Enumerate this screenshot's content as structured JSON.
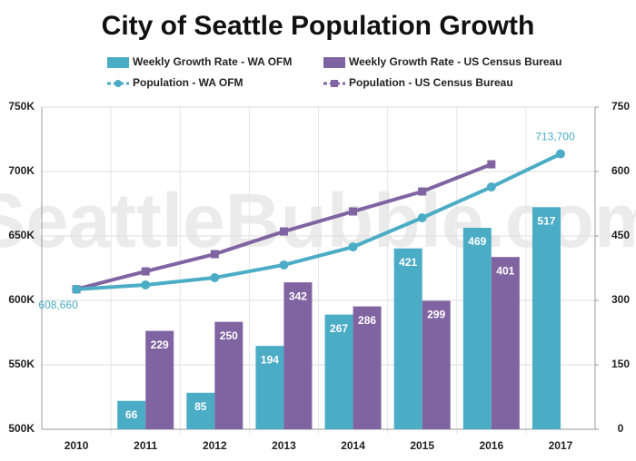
{
  "chart_data": {
    "type": "bar",
    "title": "City of Seattle Population Growth",
    "watermark": "SeattleBubble.com",
    "categories": [
      "2010",
      "2011",
      "2012",
      "2013",
      "2014",
      "2015",
      "2016",
      "2017"
    ],
    "series": [
      {
        "name": "Weekly Growth Rate - WA OFM",
        "type": "bar",
        "axis": "y2",
        "color": "#4bacc6",
        "values": [
          null,
          66,
          85,
          194,
          267,
          421,
          469,
          517
        ]
      },
      {
        "name": "Weekly Growth Rate - US Census Bureau",
        "type": "bar",
        "axis": "y2",
        "color": "#8064a2",
        "values": [
          null,
          229,
          250,
          342,
          286,
          299,
          401,
          null
        ]
      },
      {
        "name": "Population - WA OFM",
        "type": "line",
        "marker": "circle",
        "color": "#4bacc6",
        "values": [
          608660,
          612000,
          617600,
          627500,
          641500,
          664100,
          688000,
          713700
        ],
        "value_labels": [
          "608,660",
          null,
          null,
          null,
          null,
          null,
          null,
          "713,700"
        ]
      },
      {
        "name": "Population - US Census Bureau",
        "type": "line",
        "marker": "square",
        "color": "#8064a2",
        "values": [
          608660,
          622500,
          635900,
          653500,
          669000,
          684500,
          705600,
          null
        ]
      }
    ],
    "ylim": [
      500000,
      750000
    ],
    "yticks": [
      {
        "value": 500000,
        "label": "500K"
      },
      {
        "value": 550000,
        "label": "550K"
      },
      {
        "value": 600000,
        "label": "600K"
      },
      {
        "value": 650000,
        "label": "650K"
      },
      {
        "value": 700000,
        "label": "700K"
      },
      {
        "value": 750000,
        "label": "750K"
      }
    ],
    "y2lim": [
      0,
      750
    ],
    "y2ticks": [
      0,
      150,
      300,
      450,
      600,
      750
    ],
    "grid": true
  }
}
